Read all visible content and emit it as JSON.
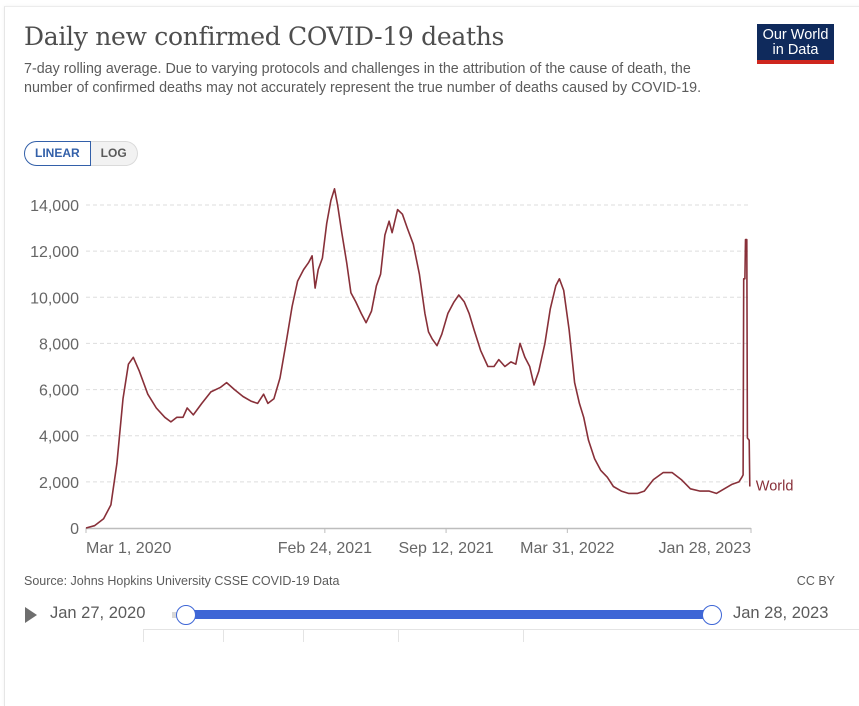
{
  "header": {
    "title": "Daily new confirmed COVID-19 deaths",
    "subtitle": "7-day rolling average. Due to varying protocols and challenges in the attribution of the cause of death, the number of confirmed deaths may not accurately represent the true number of deaths caused by COVID-19.",
    "logo_line1": "Our World",
    "logo_line2": "in Data"
  },
  "scale_toggle": {
    "options": [
      "LINEAR",
      "LOG"
    ],
    "selected": "LINEAR"
  },
  "footer": {
    "source": "Source: Johns Hopkins University CSSE COVID-19 Data",
    "license": "CC BY"
  },
  "timeline": {
    "start_label": "Jan 27, 2020",
    "end_label": "Jan 28, 2023",
    "play_icon": "play-icon",
    "range_start_fraction": 0,
    "range_end_fraction": 1
  },
  "colors": {
    "series": "#883039",
    "accent": "#3e66d6",
    "logo_bg": "#0f2a5c",
    "logo_bar": "#ce261e"
  },
  "chart_data": {
    "type": "line",
    "title": "Daily new confirmed COVID-19 deaths",
    "xlabel": "",
    "ylabel": "",
    "x_range": [
      "2020-01-27",
      "2023-01-28"
    ],
    "ylim": [
      0,
      14000
    ],
    "yticks": [
      0,
      2000,
      4000,
      6000,
      8000,
      10000,
      12000,
      14000
    ],
    "ytick_labels": [
      "0",
      "2,000",
      "4,000",
      "6,000",
      "8,000",
      "10,000",
      "12,000",
      "14,000"
    ],
    "xticks": [
      {
        "date": "2020-03-01",
        "label": "Mar 1, 2020"
      },
      {
        "date": "2021-02-24",
        "label": "Feb 24, 2021"
      },
      {
        "date": "2021-09-12",
        "label": "Sep 12, 2021"
      },
      {
        "date": "2022-03-31",
        "label": "Mar 31, 2022"
      },
      {
        "date": "2023-01-28",
        "label": "Jan 28, 2023"
      }
    ],
    "grid": true,
    "legend": "inline-end-label",
    "series": [
      {
        "name": "World",
        "points": [
          [
            "2020-01-27",
            0
          ],
          [
            "2020-02-10",
            100
          ],
          [
            "2020-02-25",
            400
          ],
          [
            "2020-03-08",
            1000
          ],
          [
            "2020-03-18",
            2800
          ],
          [
            "2020-03-28",
            5600
          ],
          [
            "2020-04-06",
            7100
          ],
          [
            "2020-04-14",
            7400
          ],
          [
            "2020-04-24",
            6800
          ],
          [
            "2020-05-08",
            5800
          ],
          [
            "2020-05-22",
            5200
          ],
          [
            "2020-06-05",
            4800
          ],
          [
            "2020-06-15",
            4600
          ],
          [
            "2020-06-25",
            4800
          ],
          [
            "2020-07-05",
            4800
          ],
          [
            "2020-07-12",
            5200
          ],
          [
            "2020-07-22",
            4900
          ],
          [
            "2020-08-05",
            5400
          ],
          [
            "2020-08-20",
            5900
          ],
          [
            "2020-09-05",
            6100
          ],
          [
            "2020-09-15",
            6300
          ],
          [
            "2020-09-28",
            6000
          ],
          [
            "2020-10-12",
            5700
          ],
          [
            "2020-10-25",
            5500
          ],
          [
            "2020-11-05",
            5400
          ],
          [
            "2020-11-15",
            5800
          ],
          [
            "2020-11-22",
            5400
          ],
          [
            "2020-12-02",
            5600
          ],
          [
            "2020-12-12",
            6500
          ],
          [
            "2020-12-22",
            8000
          ],
          [
            "2021-01-01",
            9600
          ],
          [
            "2021-01-10",
            10700
          ],
          [
            "2021-01-20",
            11200
          ],
          [
            "2021-01-28",
            11500
          ],
          [
            "2021-02-03",
            11800
          ],
          [
            "2021-02-08",
            10400
          ],
          [
            "2021-02-13",
            11200
          ],
          [
            "2021-02-20",
            11700
          ],
          [
            "2021-02-27",
            13200
          ],
          [
            "2021-03-06",
            14200
          ],
          [
            "2021-03-12",
            14700
          ],
          [
            "2021-03-17",
            14000
          ],
          [
            "2021-03-24",
            12800
          ],
          [
            "2021-04-01",
            11500
          ],
          [
            "2021-04-08",
            10200
          ],
          [
            "2021-04-16",
            9800
          ],
          [
            "2021-04-25",
            9300
          ],
          [
            "2021-05-03",
            8900
          ],
          [
            "2021-05-12",
            9400
          ],
          [
            "2021-05-20",
            10500
          ],
          [
            "2021-05-27",
            11000
          ],
          [
            "2021-06-03",
            12700
          ],
          [
            "2021-06-10",
            13300
          ],
          [
            "2021-06-15",
            12800
          ],
          [
            "2021-06-24",
            13800
          ],
          [
            "2021-07-02",
            13600
          ],
          [
            "2021-07-10",
            13000
          ],
          [
            "2021-07-20",
            12300
          ],
          [
            "2021-07-30",
            11000
          ],
          [
            "2021-08-08",
            9300
          ],
          [
            "2021-08-14",
            8500
          ],
          [
            "2021-08-20",
            8200
          ],
          [
            "2021-08-28",
            7900
          ],
          [
            "2021-09-05",
            8400
          ],
          [
            "2021-09-15",
            9300
          ],
          [
            "2021-09-25",
            9800
          ],
          [
            "2021-10-03",
            10100
          ],
          [
            "2021-10-12",
            9800
          ],
          [
            "2021-10-20",
            9300
          ],
          [
            "2021-10-28",
            8600
          ],
          [
            "2021-11-08",
            7700
          ],
          [
            "2021-11-20",
            7000
          ],
          [
            "2021-11-30",
            7000
          ],
          [
            "2021-12-08",
            7300
          ],
          [
            "2021-12-18",
            7000
          ],
          [
            "2021-12-28",
            7200
          ],
          [
            "2022-01-05",
            7100
          ],
          [
            "2022-01-12",
            8000
          ],
          [
            "2022-01-20",
            7400
          ],
          [
            "2022-01-28",
            7000
          ],
          [
            "2022-02-04",
            6200
          ],
          [
            "2022-02-12",
            6800
          ],
          [
            "2022-02-22",
            8000
          ],
          [
            "2022-03-03",
            9500
          ],
          [
            "2022-03-12",
            10500
          ],
          [
            "2022-03-18",
            10800
          ],
          [
            "2022-03-25",
            10300
          ],
          [
            "2022-04-03",
            8600
          ],
          [
            "2022-04-12",
            6300
          ],
          [
            "2022-04-20",
            5400
          ],
          [
            "2022-04-27",
            4800
          ],
          [
            "2022-05-05",
            3800
          ],
          [
            "2022-05-15",
            3000
          ],
          [
            "2022-05-25",
            2500
          ],
          [
            "2022-06-05",
            2200
          ],
          [
            "2022-06-15",
            1800
          ],
          [
            "2022-06-28",
            1600
          ],
          [
            "2022-07-10",
            1500
          ],
          [
            "2022-07-25",
            1500
          ],
          [
            "2022-08-05",
            1600
          ],
          [
            "2022-08-20",
            2100
          ],
          [
            "2022-09-05",
            2400
          ],
          [
            "2022-09-20",
            2400
          ],
          [
            "2022-10-05",
            2100
          ],
          [
            "2022-10-20",
            1700
          ],
          [
            "2022-11-05",
            1600
          ],
          [
            "2022-11-20",
            1600
          ],
          [
            "2022-12-02",
            1500
          ],
          [
            "2022-12-15",
            1700
          ],
          [
            "2022-12-28",
            1900
          ],
          [
            "2023-01-08",
            2000
          ],
          [
            "2023-01-13",
            2200
          ],
          [
            "2023-01-15",
            2300
          ],
          [
            "2023-01-16",
            10800
          ],
          [
            "2023-01-18",
            10800
          ],
          [
            "2023-01-19",
            12500
          ],
          [
            "2023-01-21",
            12500
          ],
          [
            "2023-01-22",
            3900
          ],
          [
            "2023-01-25",
            3800
          ],
          [
            "2023-01-26",
            1800
          ]
        ]
      }
    ]
  }
}
